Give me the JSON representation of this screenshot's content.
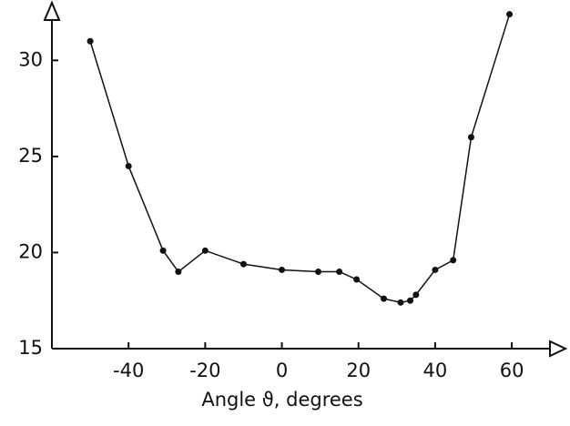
{
  "chart_data": {
    "type": "line",
    "x_label": "Angle ϑ, degrees",
    "x": [
      -50,
      -40,
      -31,
      -27,
      -20,
      -10,
      0,
      9.5,
      15,
      19.5,
      26.6,
      31,
      33.5,
      35,
      40,
      44.7,
      49.4,
      59.4
    ],
    "values": [
      31.0,
      24.5,
      20.1,
      19.0,
      20.1,
      19.4,
      19.1,
      19.0,
      19.0,
      18.6,
      17.6,
      17.4,
      17.5,
      17.8,
      19.1,
      19.6,
      26.0,
      32.4
    ],
    "color": "#111111",
    "xlim": [
      -60,
      74
    ],
    "ylim": [
      15,
      33
    ],
    "xticks": [
      -40,
      -20,
      0,
      20,
      40,
      60
    ],
    "yticks": [
      15,
      20,
      25,
      30
    ]
  }
}
